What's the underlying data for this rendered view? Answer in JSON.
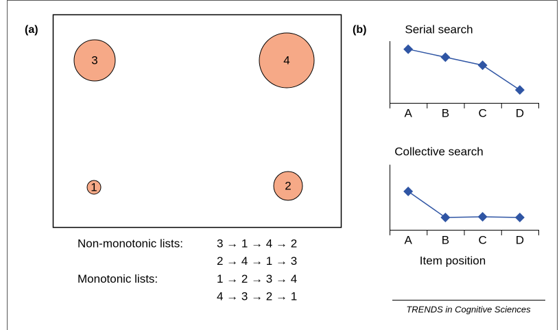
{
  "panel_a": {
    "label": "(a)",
    "circles": [
      {
        "label": "3"
      },
      {
        "label": "4"
      },
      {
        "label": "1"
      },
      {
        "label": "2"
      }
    ],
    "lists": [
      {
        "name": "Non-monotonic lists:",
        "sequences": [
          "3 → 1 → 4 → 2",
          "2 → 4 → 1 → 3"
        ]
      },
      {
        "name": "Monotonic lists:",
        "sequences": [
          "1 → 2 → 3 → 4",
          "4 → 3 → 2 → 1"
        ]
      }
    ]
  },
  "panel_b": {
    "label": "(b)",
    "x_label": "Item position"
  },
  "chart_data": [
    {
      "type": "line",
      "title": "Serial search",
      "categories": [
        "A",
        "B",
        "C",
        "D"
      ],
      "values": [
        87,
        74,
        61,
        21
      ],
      "color": "#2f55a4",
      "ylim": [
        0,
        100
      ]
    },
    {
      "type": "line",
      "title": "Collective search",
      "categories": [
        "A",
        "B",
        "C",
        "D"
      ],
      "values": [
        59,
        19,
        20,
        19
      ],
      "color": "#2f55a4",
      "ylim": [
        0,
        100
      ]
    }
  ],
  "footer": "TRENDS in Cognitive Sciences"
}
